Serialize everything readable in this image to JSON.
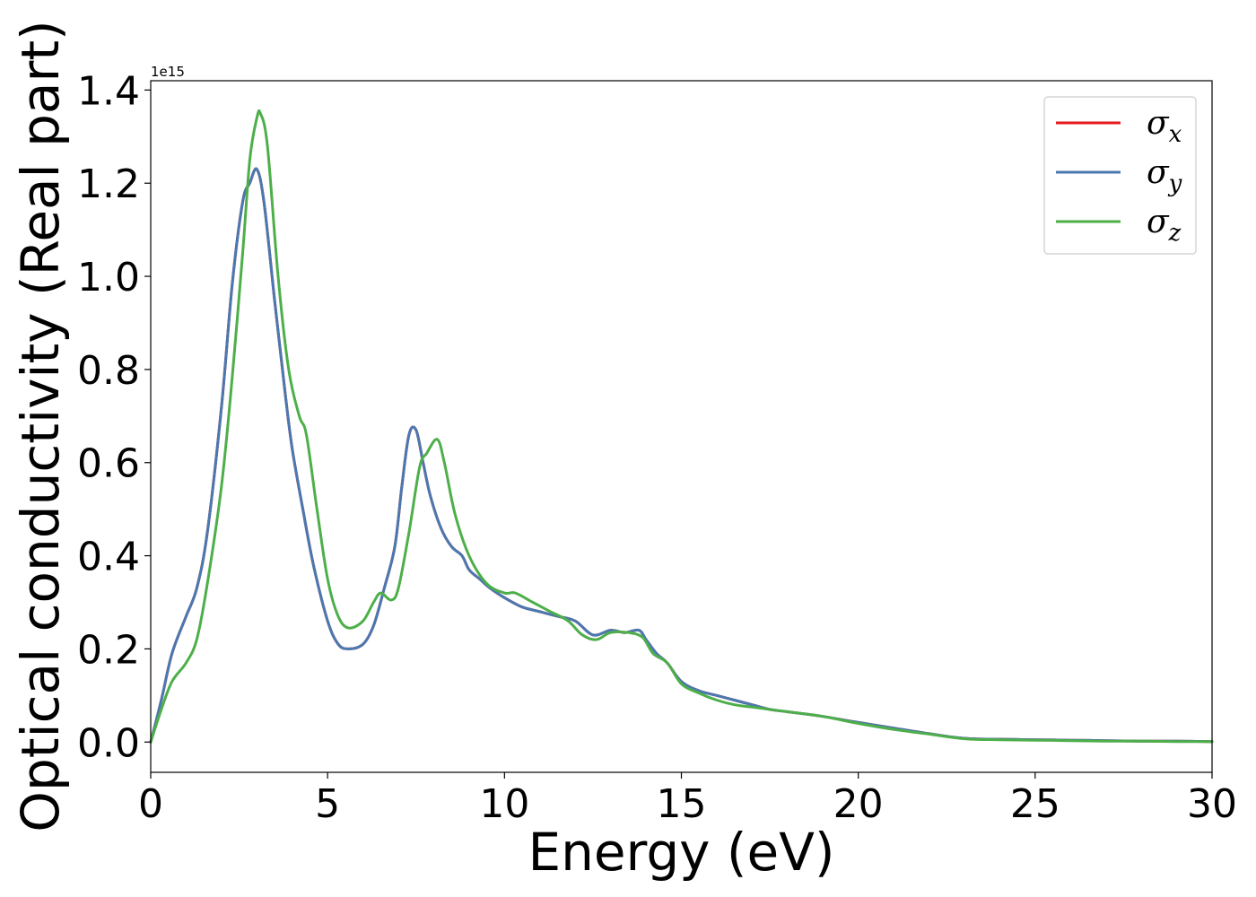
{
  "chart_data": {
    "type": "line",
    "title": "",
    "xlabel": "Energy (eV)",
    "ylabel": "Optical conductivity (Real part)",
    "y_offset_label": "1e15",
    "y_scale": 1000000000000000.0,
    "xlim": [
      0,
      30
    ],
    "ylim": [
      -0.065,
      1.42
    ],
    "x_ticks": [
      0,
      5,
      10,
      15,
      20,
      25,
      30
    ],
    "x_tick_labels": [
      "0",
      "5",
      "10",
      "15",
      "20",
      "25",
      "30"
    ],
    "y_ticks": [
      0.0,
      0.2,
      0.4,
      0.6,
      0.8,
      1.0,
      1.2,
      1.4
    ],
    "y_tick_labels": [
      "0.0",
      "0.2",
      "0.4",
      "0.6",
      "0.8",
      "1.0",
      "1.2",
      "1.4"
    ],
    "grid": false,
    "legend_position": "top-right",
    "series": [
      {
        "name": "σ",
        "subscript": "x",
        "color": "#e41a1c",
        "x": [
          0,
          0.3,
          0.6,
          1.0,
          1.3,
          1.6,
          2.0,
          2.3,
          2.6,
          2.8,
          3.0,
          3.2,
          3.5,
          3.8,
          4.0,
          4.3,
          4.6,
          5.0,
          5.3,
          5.6,
          6.0,
          6.3,
          6.6,
          6.9,
          7.1,
          7.3,
          7.5,
          7.7,
          7.9,
          8.2,
          8.5,
          8.8,
          9.0,
          9.3,
          9.6,
          10.0,
          10.5,
          11.0,
          11.5,
          12.0,
          12.5,
          13.0,
          13.4,
          13.8,
          14.0,
          14.3,
          14.6,
          15.0,
          15.5,
          16.0,
          16.5,
          17.0,
          17.5,
          18.0,
          19.0,
          20.0,
          21.0,
          22.0,
          23.0,
          24.0,
          25.0,
          26.0,
          27.0,
          28.0,
          29.0,
          30.0
        ],
        "y": [
          0.0,
          0.09,
          0.19,
          0.27,
          0.33,
          0.45,
          0.72,
          0.98,
          1.16,
          1.2,
          1.23,
          1.16,
          0.95,
          0.75,
          0.63,
          0.5,
          0.38,
          0.26,
          0.21,
          0.2,
          0.21,
          0.25,
          0.33,
          0.42,
          0.55,
          0.66,
          0.67,
          0.6,
          0.53,
          0.46,
          0.42,
          0.4,
          0.37,
          0.35,
          0.33,
          0.31,
          0.29,
          0.28,
          0.27,
          0.26,
          0.23,
          0.24,
          0.235,
          0.24,
          0.22,
          0.19,
          0.17,
          0.13,
          0.11,
          0.1,
          0.09,
          0.08,
          0.07,
          0.065,
          0.055,
          0.042,
          0.03,
          0.018,
          0.008,
          0.006,
          0.005,
          0.004,
          0.003,
          0.002,
          0.002,
          0.001
        ]
      },
      {
        "name": "σ",
        "subscript": "y",
        "color": "#4a78b0",
        "x": [
          0,
          0.3,
          0.6,
          1.0,
          1.3,
          1.6,
          2.0,
          2.3,
          2.6,
          2.8,
          3.0,
          3.2,
          3.5,
          3.8,
          4.0,
          4.3,
          4.6,
          5.0,
          5.3,
          5.6,
          6.0,
          6.3,
          6.6,
          6.9,
          7.1,
          7.3,
          7.5,
          7.7,
          7.9,
          8.2,
          8.5,
          8.8,
          9.0,
          9.3,
          9.6,
          10.0,
          10.5,
          11.0,
          11.5,
          12.0,
          12.5,
          13.0,
          13.4,
          13.8,
          14.0,
          14.3,
          14.6,
          15.0,
          15.5,
          16.0,
          16.5,
          17.0,
          17.5,
          18.0,
          19.0,
          20.0,
          21.0,
          22.0,
          23.0,
          24.0,
          25.0,
          26.0,
          27.0,
          28.0,
          29.0,
          30.0
        ],
        "y": [
          0.0,
          0.09,
          0.19,
          0.27,
          0.33,
          0.45,
          0.72,
          0.98,
          1.16,
          1.2,
          1.23,
          1.16,
          0.95,
          0.75,
          0.63,
          0.5,
          0.38,
          0.26,
          0.21,
          0.2,
          0.21,
          0.25,
          0.33,
          0.42,
          0.55,
          0.66,
          0.67,
          0.6,
          0.53,
          0.46,
          0.42,
          0.4,
          0.37,
          0.35,
          0.33,
          0.31,
          0.29,
          0.28,
          0.27,
          0.26,
          0.23,
          0.24,
          0.235,
          0.24,
          0.22,
          0.19,
          0.17,
          0.13,
          0.11,
          0.1,
          0.09,
          0.08,
          0.07,
          0.065,
          0.055,
          0.042,
          0.03,
          0.018,
          0.008,
          0.006,
          0.005,
          0.004,
          0.003,
          0.002,
          0.002,
          0.001
        ]
      },
      {
        "name": "σ",
        "subscript": "z",
        "color": "#4daf4a",
        "x": [
          0,
          0.3,
          0.6,
          1.0,
          1.3,
          1.6,
          2.0,
          2.3,
          2.6,
          2.8,
          3.0,
          3.1,
          3.3,
          3.6,
          3.9,
          4.2,
          4.4,
          4.7,
          5.0,
          5.3,
          5.6,
          6.0,
          6.3,
          6.5,
          6.8,
          7.0,
          7.3,
          7.6,
          7.8,
          8.1,
          8.3,
          8.6,
          9.0,
          9.5,
          10.0,
          10.3,
          10.8,
          11.3,
          11.8,
          12.2,
          12.6,
          13.0,
          13.5,
          13.9,
          14.2,
          14.6,
          15.0,
          15.5,
          16.0,
          16.5,
          17.0,
          17.5,
          18.0,
          19.0,
          20.0,
          21.0,
          22.0,
          23.0,
          24.0,
          25.0,
          26.0,
          27.0,
          28.0,
          29.0,
          30.0
        ],
        "y": [
          0.0,
          0.07,
          0.13,
          0.17,
          0.22,
          0.34,
          0.55,
          0.78,
          1.05,
          1.25,
          1.34,
          1.35,
          1.28,
          1.0,
          0.8,
          0.7,
          0.66,
          0.5,
          0.35,
          0.27,
          0.245,
          0.26,
          0.3,
          0.32,
          0.305,
          0.33,
          0.45,
          0.59,
          0.62,
          0.65,
          0.6,
          0.49,
          0.4,
          0.34,
          0.32,
          0.32,
          0.3,
          0.28,
          0.26,
          0.23,
          0.22,
          0.235,
          0.235,
          0.225,
          0.19,
          0.17,
          0.125,
          0.105,
          0.09,
          0.08,
          0.075,
          0.07,
          0.065,
          0.055,
          0.04,
          0.027,
          0.017,
          0.007,
          0.005,
          0.004,
          0.003,
          0.002,
          0.002,
          0.001,
          0.001
        ]
      }
    ]
  }
}
